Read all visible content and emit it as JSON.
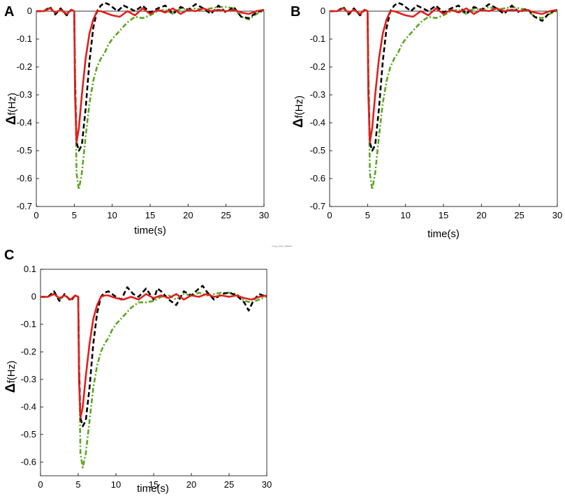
{
  "figure": {
    "watermark_text": "Image_0016_500DB1"
  },
  "chart_data": [
    {
      "panel": "A",
      "type": "line",
      "xlabel": "time(s)",
      "ylabel_symbol": "Δ",
      "ylabel": "f(Hz)",
      "xlim": [
        0,
        30
      ],
      "ylim": [
        -0.7,
        0
      ],
      "xticks": [
        0,
        5,
        10,
        15,
        20,
        25,
        30
      ],
      "yticks": [
        0,
        -0.1,
        -0.2,
        -0.3,
        -0.4,
        -0.5,
        -0.6,
        -0.7
      ],
      "series": [
        {
          "name": "green-dashdot",
          "color": "#5aa61e",
          "style": "dashdot",
          "x": [
            0,
            1,
            1.8,
            2.5,
            3.2,
            4,
            4.6,
            5.0,
            5.15,
            5.3,
            5.6,
            6.0,
            6.5,
            7.0,
            7.5,
            8.0,
            8.5,
            9.0,
            9.5,
            10,
            11,
            12,
            13,
            14,
            15,
            16,
            17,
            18,
            19,
            20,
            21,
            22,
            23,
            24,
            25,
            26,
            27,
            28,
            29,
            30
          ],
          "y": [
            0,
            0,
            0.012,
            -0.01,
            0.005,
            -0.012,
            0.005,
            0,
            -0.3,
            -0.58,
            -0.64,
            -0.58,
            -0.45,
            -0.33,
            -0.25,
            -0.2,
            -0.17,
            -0.15,
            -0.12,
            -0.1,
            -0.07,
            -0.04,
            -0.02,
            -0.025,
            -0.015,
            0.0,
            0.005,
            -0.01,
            0.01,
            0.005,
            0.01,
            0.005,
            0.01,
            0.015,
            0.015,
            0.01,
            -0.02,
            -0.03,
            -0.01,
            0.002
          ]
        },
        {
          "name": "black-dashed",
          "color": "#000000",
          "style": "dashed",
          "x": [
            0,
            1,
            1.8,
            2.5,
            3.2,
            4,
            4.6,
            5.0,
            5.1,
            5.3,
            5.6,
            6.0,
            6.5,
            7.0,
            7.5,
            8.0,
            8.5,
            9.0,
            9.5,
            10,
            10.7,
            11.5,
            12.3,
            13,
            14,
            15,
            16,
            17,
            18,
            19,
            20,
            21,
            22,
            23,
            24,
            25,
            26,
            27,
            28,
            29,
            30
          ],
          "y": [
            0,
            0,
            0.015,
            -0.012,
            0.01,
            -0.015,
            0.005,
            0,
            -0.25,
            -0.47,
            -0.5,
            -0.48,
            -0.35,
            -0.18,
            -0.06,
            0.0,
            0.02,
            0.03,
            0.025,
            0.015,
            0.0,
            0.02,
            0.01,
            0.0,
            0.02,
            -0.005,
            0.01,
            0.02,
            -0.01,
            0.015,
            0.005,
            0.025,
            0.01,
            -0.01,
            0.02,
            -0.005,
            0.015,
            -0.02,
            -0.025,
            -0.005,
            0.005
          ]
        },
        {
          "name": "red-solid",
          "color": "#e0201c",
          "style": "solid",
          "x": [
            0,
            1,
            1.8,
            2.5,
            3.2,
            4,
            4.6,
            5.0,
            5.1,
            5.3,
            5.6,
            6.0,
            6.5,
            7.0,
            7.5,
            8.0,
            8.5,
            9.0,
            9.5,
            10,
            11,
            12,
            13,
            14,
            15,
            16,
            17,
            18,
            19,
            20,
            21,
            22,
            23,
            24,
            25,
            26,
            27,
            28,
            29,
            30
          ],
          "y": [
            0,
            0,
            0.01,
            -0.005,
            0.005,
            -0.01,
            0.005,
            0,
            -0.3,
            -0.47,
            -0.42,
            -0.3,
            -0.17,
            -0.08,
            -0.03,
            0.0,
            0.0,
            -0.005,
            -0.01,
            -0.015,
            -0.02,
            0.0,
            -0.015,
            0.01,
            -0.01,
            0.005,
            -0.005,
            0.01,
            -0.01,
            0.005,
            0.0,
            0.01,
            0.0,
            0.005,
            0.0,
            0.005,
            -0.005,
            -0.01,
            0.0,
            0.005
          ]
        }
      ]
    },
    {
      "panel": "B",
      "type": "line",
      "xlabel": "time(s)",
      "ylabel_symbol": "Δ",
      "ylabel": "f(Hz)",
      "xlim": [
        0,
        30
      ],
      "ylim": [
        -0.7,
        0
      ],
      "xticks": [
        0,
        5,
        10,
        15,
        20,
        25,
        30
      ],
      "yticks": [
        0,
        -0.1,
        -0.2,
        -0.3,
        -0.4,
        -0.5,
        -0.6,
        -0.7
      ],
      "series": [
        {
          "name": "green-dashdot",
          "color": "#5aa61e",
          "style": "dashdot",
          "x": [
            0,
            1,
            1.8,
            2.5,
            3.2,
            4,
            4.6,
            5.0,
            5.15,
            5.3,
            5.6,
            6.0,
            6.5,
            7.0,
            7.5,
            8.0,
            8.5,
            9.0,
            9.5,
            10,
            11,
            12,
            13,
            14,
            15,
            16,
            17,
            18,
            19,
            20,
            21,
            22,
            23,
            24,
            25,
            26,
            27,
            28,
            29,
            30
          ],
          "y": [
            0,
            0,
            0.012,
            -0.01,
            0.005,
            -0.012,
            0.005,
            0,
            -0.3,
            -0.58,
            -0.64,
            -0.58,
            -0.45,
            -0.33,
            -0.25,
            -0.2,
            -0.17,
            -0.15,
            -0.12,
            -0.1,
            -0.07,
            -0.04,
            -0.02,
            -0.025,
            -0.015,
            0.0,
            0.005,
            -0.01,
            0.01,
            0.005,
            0.015,
            0.005,
            0.01,
            0.015,
            0.01,
            0.005,
            -0.02,
            -0.025,
            -0.01,
            0.002
          ]
        },
        {
          "name": "black-dashed",
          "color": "#000000",
          "style": "dashed",
          "x": [
            0,
            1,
            1.8,
            2.5,
            3.2,
            4,
            4.6,
            5.0,
            5.1,
            5.3,
            5.6,
            6.0,
            6.5,
            7.0,
            7.5,
            8.0,
            8.5,
            9.0,
            9.5,
            10,
            10.7,
            11.5,
            12.3,
            13,
            14,
            15,
            16,
            17,
            18,
            19,
            20,
            21,
            22,
            23,
            24,
            25,
            26,
            27,
            28,
            29,
            30
          ],
          "y": [
            0,
            0,
            0.015,
            -0.012,
            0.01,
            -0.015,
            0.005,
            0,
            -0.25,
            -0.47,
            -0.5,
            -0.48,
            -0.35,
            -0.18,
            -0.06,
            0.0,
            0.02,
            0.03,
            0.025,
            0.015,
            0.0,
            0.02,
            0.01,
            0.0,
            0.02,
            -0.005,
            0.01,
            0.02,
            -0.01,
            0.015,
            0.005,
            0.025,
            0.01,
            -0.01,
            0.02,
            -0.005,
            0.01,
            -0.02,
            -0.035,
            -0.005,
            0.005
          ]
        },
        {
          "name": "red-solid",
          "color": "#e0201c",
          "style": "solid",
          "x": [
            0,
            1,
            1.8,
            2.5,
            3.2,
            4,
            4.6,
            5.0,
            5.1,
            5.3,
            5.6,
            6.0,
            6.5,
            7.0,
            7.5,
            8.0,
            8.5,
            9.0,
            9.5,
            10,
            11,
            12,
            13,
            14,
            15,
            16,
            17,
            18,
            19,
            20,
            21,
            22,
            23,
            24,
            25,
            26,
            27,
            28,
            29,
            30
          ],
          "y": [
            0,
            0,
            0.01,
            -0.005,
            0.005,
            -0.01,
            0.005,
            0,
            -0.3,
            -0.47,
            -0.42,
            -0.3,
            -0.17,
            -0.08,
            -0.03,
            0.0,
            0.0,
            -0.005,
            -0.01,
            -0.015,
            -0.02,
            0.0,
            -0.015,
            0.01,
            -0.01,
            0.005,
            -0.005,
            0.01,
            -0.01,
            0.005,
            0.0,
            0.01,
            0.0,
            0.005,
            0.0,
            0.005,
            -0.005,
            -0.01,
            0.0,
            0.005
          ]
        }
      ]
    },
    {
      "panel": "C",
      "type": "line",
      "xlabel": "time(s)",
      "ylabel_symbol": "Δ",
      "ylabel": "f(Hz)",
      "xlim": [
        0,
        30
      ],
      "ylim": [
        -0.65,
        0.1
      ],
      "xticks": [
        0,
        5,
        10,
        15,
        20,
        25,
        30
      ],
      "yticks": [
        0.1,
        0,
        -0.1,
        -0.2,
        -0.3,
        -0.4,
        -0.5,
        -0.6
      ],
      "series": [
        {
          "name": "green-dashdot",
          "color": "#5aa61e",
          "style": "dashdot",
          "x": [
            0,
            1,
            1.8,
            2.5,
            3.2,
            4,
            4.6,
            5.0,
            5.15,
            5.3,
            5.6,
            6.0,
            6.5,
            7.0,
            7.5,
            8.0,
            8.5,
            9.0,
            9.5,
            10,
            11,
            12,
            13,
            14,
            15,
            16,
            17,
            18,
            19,
            20,
            21,
            22,
            23,
            24,
            25,
            26,
            27,
            28,
            29,
            30
          ],
          "y": [
            0,
            0,
            0.012,
            -0.01,
            0.005,
            -0.012,
            0.005,
            0,
            -0.3,
            -0.57,
            -0.62,
            -0.57,
            -0.45,
            -0.33,
            -0.25,
            -0.2,
            -0.17,
            -0.15,
            -0.12,
            -0.1,
            -0.07,
            -0.04,
            -0.02,
            -0.02,
            -0.015,
            0.0,
            0.005,
            -0.01,
            0.01,
            0.005,
            0.015,
            0.005,
            0.01,
            0.015,
            0.015,
            0.01,
            -0.015,
            -0.02,
            -0.01,
            0.002
          ]
        },
        {
          "name": "black-dashed",
          "color": "#000000",
          "style": "dashed",
          "x": [
            0,
            1,
            1.8,
            2.5,
            3.2,
            4,
            4.6,
            5.0,
            5.1,
            5.3,
            5.6,
            6.0,
            6.5,
            7.0,
            7.5,
            8.0,
            8.5,
            9.0,
            9.5,
            10,
            10.7,
            11.5,
            12.3,
            13,
            14,
            15,
            15.5,
            16,
            17,
            18,
            19,
            20,
            21,
            21.5,
            22,
            23,
            24,
            25,
            26,
            27,
            27.6,
            28.3,
            29,
            30
          ],
          "y": [
            0,
            0,
            0.02,
            -0.015,
            0.01,
            -0.015,
            0.005,
            0,
            -0.25,
            -0.44,
            -0.47,
            -0.45,
            -0.33,
            -0.17,
            -0.06,
            0.0,
            0.015,
            0.02,
            0.01,
            0.0,
            -0.01,
            0.035,
            0.01,
            0.0,
            0.03,
            -0.01,
            0.03,
            0.02,
            -0.01,
            -0.03,
            0.02,
            0.005,
            0.03,
            0.04,
            0.02,
            -0.01,
            0.01,
            0.015,
            0.005,
            -0.02,
            -0.05,
            -0.01,
            0.01,
            0.0
          ]
        },
        {
          "name": "red-solid",
          "color": "#e0201c",
          "style": "solid",
          "x": [
            0,
            1,
            1.8,
            2.5,
            3.2,
            4,
            4.6,
            5.0,
            5.1,
            5.3,
            5.6,
            6.0,
            6.5,
            7.0,
            7.5,
            8.0,
            8.5,
            9.0,
            9.5,
            10,
            11,
            12,
            13,
            14,
            15,
            16,
            17,
            18,
            19,
            20,
            21,
            22,
            23,
            24,
            25,
            26,
            27,
            28,
            29,
            30
          ],
          "y": [
            0,
            0,
            0.01,
            -0.005,
            0.005,
            -0.01,
            0.005,
            0,
            -0.3,
            -0.44,
            -0.4,
            -0.29,
            -0.17,
            -0.08,
            -0.03,
            0.0,
            0.005,
            0.005,
            0.0,
            -0.005,
            -0.01,
            0.0,
            -0.01,
            0.01,
            -0.005,
            0.005,
            -0.005,
            0.01,
            -0.01,
            0.005,
            0.0,
            0.01,
            0.0,
            0.005,
            0.0,
            0.005,
            -0.005,
            -0.01,
            0.0,
            0.005
          ]
        }
      ]
    }
  ]
}
